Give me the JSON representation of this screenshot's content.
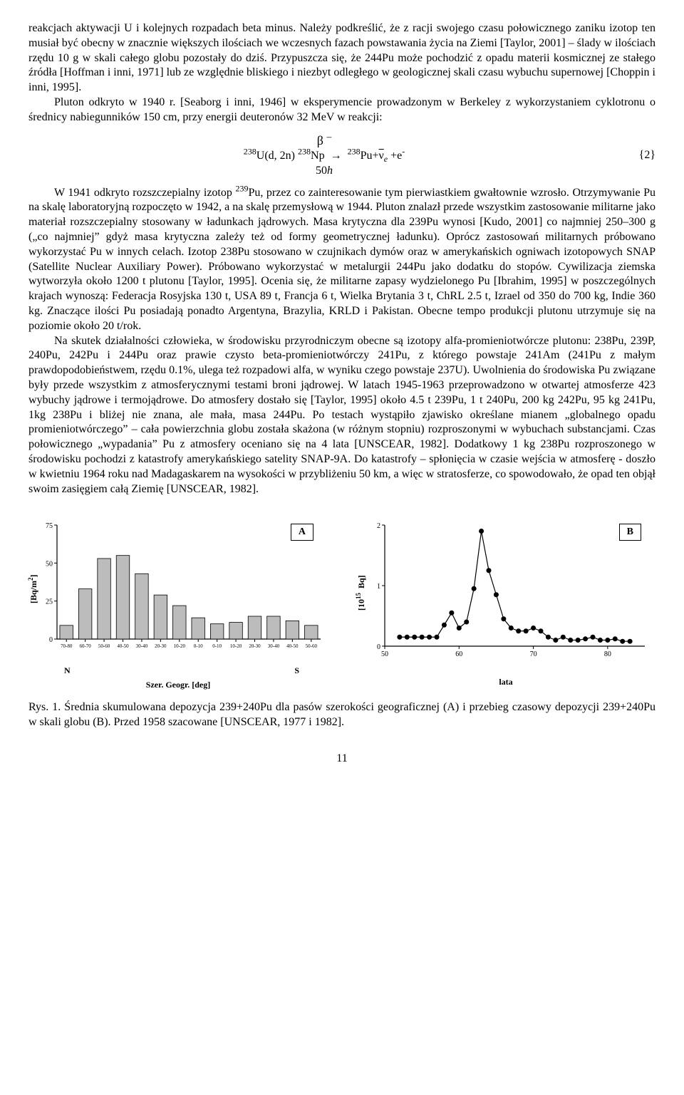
{
  "para1": "reakcjach aktywacji U i kolejnych rozpadach beta minus. Należy podkreślić, że z racji swojego czasu połowicznego zaniku izotop ten musiał być obecny w znacznie większych ilościach we wczesnych fazach powstawania życia na Ziemi [Taylor, 2001] – ślady w ilościach rzędu 10 g w skali całego globu pozostały do dziś. Przypuszcza się, że 244Pu może pochodzić z opadu materii kosmicznej ze stałego źródła [Hoffman i inni, 1971] lub ze względnie bliskiego i niezbyt odległego w geologicznej skali czasu wybuchu supernowej [Choppin i inni, 1995].",
  "para2": "Pluton odkryto w 1940 r. [Seaborg i inni, 1946] w eksperymencie prowadzonym w Berkeley z wykorzystaniem cyklotronu o średnicy nabiegunników  150 cm, przy energii deuteronów  32 MeV w reakcji:",
  "eq": {
    "top": "β –",
    "mid_left": "238U(d, 2n) 238Np → 238Pu+ν̄e +e-",
    "bottom": "50h",
    "num": "{2}"
  },
  "para3_a": "W 1941 odkryto rozszczepialny izotop ",
  "para3_iso": "239",
  "para3_b": "Pu, przez co zainteresowanie tym pierwiastkiem gwałtownie wzrosło. Otrzymywanie Pu na skalę laboratoryjną rozpoczęto w 1942, a na skalę przemysłową w 1944. Pluton znalazł przede wszystkim zastosowanie militarne jako materiał rozszczepialny stosowany w ładunkach jądrowych. Masa krytyczna dla 239Pu wynosi [Kudo, 2001] co najmniej 250–300 g („co najmniej” gdyż masa krytyczna zależy też od formy geometrycznej ładunku). Oprócz zastosowań militarnych próbowano wykorzystać Pu w innych celach. Izotop 238Pu stosowano w czujnikach dymów oraz w amerykańskich ogniwach izotopowych SNAP (Satellite Nuclear Auxiliary Power). Próbowano wykorzystać w metalurgii 244Pu jako dodatku do stopów. Cywilizacja ziemska wytworzyła około 1200 t plutonu [Taylor, 1995]. Ocenia się, że militarne zapasy wydzielonego Pu [Ibrahim, 1995] w poszczególnych krajach wynoszą: Federacja Rosyjska 130 t, USA 89 t, Francja 6 t, Wielka Brytania 3 t, ChRL 2.5 t,  Izrael od 350 do 700 kg, Indie 360 kg. Znaczące ilości Pu posiadają ponadto Argentyna, Brazylia, KRLD i Pakistan.  Obecne  tempo produkcji plutonu utrzymuje się na poziomie około 20 t/rok.",
  "para4": "Na skutek działalności człowieka, w środowisku przyrodniczym obecne są izotopy alfa-promieniotwórcze plutonu: 238Pu, 239P, 240Pu, 242Pu i 244Pu oraz prawie czysto beta-promieniotwórczy 241Pu, z którego powstaje 241Am (241Pu z małym prawdopodobieństwem, rzędu 0.1%, ulega też rozpadowi alfa, w wyniku czego powstaje 237U). Uwolnienia do środowiska Pu związane były przede wszystkim z atmosferycznymi testami broni jądrowej. W latach 1945-1963 przeprowadzono w otwartej atmosferze 423 wybuchy jądrowe i termojądrowe. Do atmosfery dostało się [Taylor, 1995] około 4.5 t 239Pu, 1 t 240Pu, 200 kg 242Pu, 95 kg 241Pu, 1kg 238Pu i bliżej nie znana, ale mała, masa 244Pu. Po testach wystąpiło zjawisko określane mianem „globalnego opadu promieniotwórczego” – cała powierzchnia globu została skażona (w różnym stopniu) rozproszonymi w wybuchach substancjami. Czas połowicznego „wypadania” Pu z atmosfery oceniano się na 4 lata [UNSCEAR, 1982]. Dodatkowy 1 kg 238Pu rozproszonego w środowisku pochodzi z katastrofy amerykańskiego satelity SNAP-9A. Do katastrofy – spłonięcia w czasie wejścia w atmosferę - doszło w kwietniu 1964 roku nad Madagaskarem na wysokości w przybliżeniu 50 km, a więc w stratosferze, co spowodowało, że opad ten objął swoim zasięgiem  całą Ziemię [UNSCEAR, 1982].",
  "chartA": {
    "type": "bar",
    "ylabel": "[Bq/m2]",
    "xlabel_left": "N",
    "xlabel_right": "S",
    "xlabel_center": "Szer. Geogr. [deg]",
    "ylim": [
      0,
      75
    ],
    "yticks": [
      0,
      25,
      50,
      75
    ],
    "panel": "A",
    "bar_color": "#bcbcbc",
    "bar_stroke": "#000000",
    "categories": [
      "70-80",
      "60-70",
      "50-60",
      "40-50",
      "30-40",
      "20-30",
      "10-20",
      "0-10",
      "0-10",
      "10-20",
      "20-30",
      "30-40",
      "40-50",
      "50-60"
    ],
    "values": [
      9,
      33,
      53,
      55,
      43,
      29,
      22,
      14,
      10,
      11,
      15,
      15,
      12,
      9
    ]
  },
  "chartB": {
    "type": "line",
    "ylabel": "[1015  Bq]",
    "xlabel": "lata",
    "ylim": [
      0,
      2
    ],
    "yticks": [
      0,
      1,
      2
    ],
    "xlim": [
      50,
      85
    ],
    "xticks": [
      50,
      60,
      70,
      80
    ],
    "panel": "B",
    "line_color": "#000000",
    "marker": "circle",
    "marker_size": 3.5,
    "x": [
      52,
      53,
      54,
      55,
      56,
      57,
      58,
      59,
      60,
      61,
      62,
      63,
      64,
      65,
      66,
      67,
      68,
      69,
      70,
      71,
      72,
      73,
      74,
      75,
      76,
      77,
      78,
      79,
      80,
      81,
      82,
      83
    ],
    "y": [
      0.15,
      0.15,
      0.15,
      0.15,
      0.15,
      0.15,
      0.35,
      0.55,
      0.3,
      0.4,
      0.95,
      1.9,
      1.25,
      0.85,
      0.45,
      0.3,
      0.25,
      0.25,
      0.3,
      0.25,
      0.15,
      0.1,
      0.15,
      0.1,
      0.1,
      0.12,
      0.15,
      0.1,
      0.1,
      0.12,
      0.08,
      0.08
    ]
  },
  "caption": "Rys. 1. Średnia skumulowana depozycja  239+240Pu dla pasów szerokości geograficznej (A) i przebieg czasowy depozycji  239+240Pu w skali globu (B). Przed 1958 szacowane [UNSCEAR, 1977 i 1982].",
  "page_num": "11"
}
